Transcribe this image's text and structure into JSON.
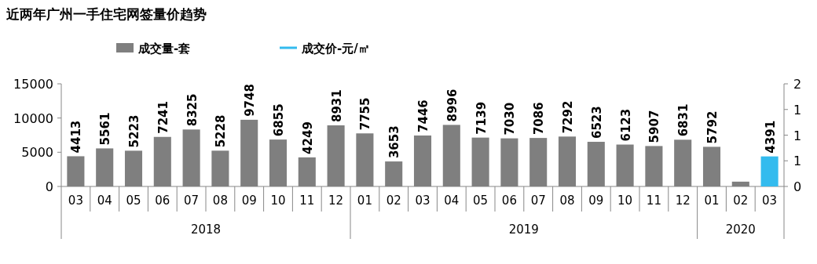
{
  "chart_data": {
    "type": "bar",
    "title": "近两年广州一手住宅网签量价趋势",
    "categories": [
      "03",
      "04",
      "05",
      "06",
      "07",
      "08",
      "09",
      "10",
      "11",
      "12",
      "01",
      "02",
      "03",
      "04",
      "05",
      "06",
      "07",
      "08",
      "09",
      "10",
      "11",
      "12",
      "01",
      "02",
      "03"
    ],
    "series": [
      {
        "name": "成交量-套",
        "color": "#7f7f7f",
        "colors": [
          "#7f7f7f",
          "#7f7f7f",
          "#7f7f7f",
          "#7f7f7f",
          "#7f7f7f",
          "#7f7f7f",
          "#7f7f7f",
          "#7f7f7f",
          "#7f7f7f",
          "#7f7f7f",
          "#7f7f7f",
          "#7f7f7f",
          "#7f7f7f",
          "#7f7f7f",
          "#7f7f7f",
          "#7f7f7f",
          "#7f7f7f",
          "#7f7f7f",
          "#7f7f7f",
          "#7f7f7f",
          "#7f7f7f",
          "#7f7f7f",
          "#7f7f7f",
          "#7f7f7f",
          "#33bbee"
        ],
        "values": [
          4413,
          5561,
          5223,
          7241,
          8325,
          5228,
          9748,
          6855,
          4249,
          8931,
          7755,
          3653,
          7446,
          8996,
          7139,
          7030,
          7086,
          7292,
          6523,
          6123,
          5907,
          6831,
          5792,
          700,
          4391
        ],
        "value_labels": [
          "4413",
          "5561",
          "5223",
          "7241",
          "8325",
          "5228",
          "9748",
          "6855",
          "4249",
          "8931",
          "7755",
          "3653",
          "7446",
          "8996",
          "7139",
          "7030",
          "7086",
          "7292",
          "6523",
          "6123",
          "5907",
          "6831",
          "5792",
          null,
          "4391"
        ]
      },
      {
        "name": "成交价-元/㎡",
        "type": "line",
        "color": "#33bbee",
        "values": [
          null,
          null,
          null,
          null,
          null,
          null,
          null,
          null,
          null,
          null,
          null,
          null,
          null,
          null,
          null,
          null,
          null,
          null,
          null,
          null,
          null,
          null,
          null,
          null,
          null
        ]
      }
    ],
    "ylim": [
      0,
      15000
    ],
    "yticks": [
      0,
      5000,
      10000,
      15000
    ],
    "y2lim": [
      0,
      2
    ],
    "y2ticks": [
      0,
      {
        "value": 0.5,
        "label": "1"
      },
      1,
      {
        "value": 1.5,
        "label": "1"
      },
      2
    ],
    "legend": "top left",
    "grid": false,
    "annotations": [
      "2018",
      "2019",
      "2020"
    ]
  }
}
